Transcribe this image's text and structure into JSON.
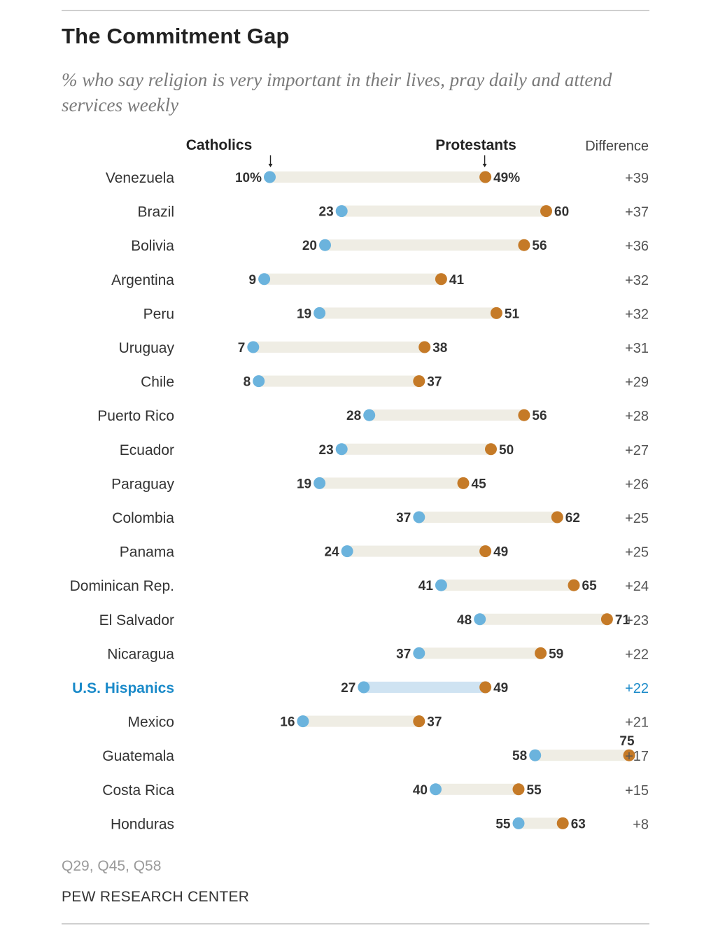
{
  "title": "The Commitment Gap",
  "subtitle": "% who say religion is very important in their lives, pray daily and attend services weekly",
  "source": "Q29, Q45, Q58",
  "org": "PEW RESEARCH CENTER",
  "colors": {
    "catholic": "#6bb3dd",
    "protestant": "#c57a27",
    "bar": "#efede4",
    "bar_highlight": "#cfe3f2",
    "highlight_text": "#1a8ac9"
  },
  "chart_data": {
    "type": "dot",
    "series_labels": {
      "catholics": "Catholics",
      "protestants": "Protestants",
      "difference": "Difference"
    },
    "highlight": "U.S. Hispanics",
    "rows": [
      {
        "country": "Venezuela",
        "catholic": 10,
        "protestant": 49,
        "difference": "+39",
        "catholic_label": "10%",
        "protestant_label": "49%"
      },
      {
        "country": "Brazil",
        "catholic": 23,
        "protestant": 60,
        "difference": "+37",
        "catholic_label": "23",
        "protestant_label": "60"
      },
      {
        "country": "Bolivia",
        "catholic": 20,
        "protestant": 56,
        "difference": "+36",
        "catholic_label": "20",
        "protestant_label": "56"
      },
      {
        "country": "Argentina",
        "catholic": 9,
        "protestant": 41,
        "difference": "+32",
        "catholic_label": "9",
        "protestant_label": "41"
      },
      {
        "country": "Peru",
        "catholic": 19,
        "protestant": 51,
        "difference": "+32",
        "catholic_label": "19",
        "protestant_label": "51"
      },
      {
        "country": "Uruguay",
        "catholic": 7,
        "protestant": 38,
        "difference": "+31",
        "catholic_label": "7",
        "protestant_label": "38"
      },
      {
        "country": "Chile",
        "catholic": 8,
        "protestant": 37,
        "difference": "+29",
        "catholic_label": "8",
        "protestant_label": "37"
      },
      {
        "country": "Puerto Rico",
        "catholic": 28,
        "protestant": 56,
        "difference": "+28",
        "catholic_label": "28",
        "protestant_label": "56"
      },
      {
        "country": "Ecuador",
        "catholic": 23,
        "protestant": 50,
        "difference": "+27",
        "catholic_label": "23",
        "protestant_label": "50"
      },
      {
        "country": "Paraguay",
        "catholic": 19,
        "protestant": 45,
        "difference": "+26",
        "catholic_label": "19",
        "protestant_label": "45"
      },
      {
        "country": "Colombia",
        "catholic": 37,
        "protestant": 62,
        "difference": "+25",
        "catholic_label": "37",
        "protestant_label": "62"
      },
      {
        "country": "Panama",
        "catholic": 24,
        "protestant": 49,
        "difference": "+25",
        "catholic_label": "24",
        "protestant_label": "49"
      },
      {
        "country": "Dominican Rep.",
        "catholic": 41,
        "protestant": 65,
        "difference": "+24",
        "catholic_label": "41",
        "protestant_label": "65"
      },
      {
        "country": "El Salvador",
        "catholic": 48,
        "protestant": 71,
        "difference": "+23",
        "catholic_label": "48",
        "protestant_label": "71"
      },
      {
        "country": "Nicaragua",
        "catholic": 37,
        "protestant": 59,
        "difference": "+22",
        "catholic_label": "37",
        "protestant_label": "59"
      },
      {
        "country": "U.S. Hispanics",
        "catholic": 27,
        "protestant": 49,
        "difference": "+22",
        "catholic_label": "27",
        "protestant_label": "49"
      },
      {
        "country": "Mexico",
        "catholic": 16,
        "protestant": 37,
        "difference": "+21",
        "catholic_label": "16",
        "protestant_label": "37"
      },
      {
        "country": "Guatemala",
        "catholic": 58,
        "protestant": 75,
        "difference": "+17",
        "catholic_label": "58",
        "protestant_label": "75"
      },
      {
        "country": "Costa Rica",
        "catholic": 40,
        "protestant": 55,
        "difference": "+15",
        "catholic_label": "40",
        "protestant_label": "55"
      },
      {
        "country": "Honduras",
        "catholic": 55,
        "protestant": 63,
        "difference": "+8",
        "catholic_label": "55",
        "protestant_label": "63"
      }
    ]
  }
}
